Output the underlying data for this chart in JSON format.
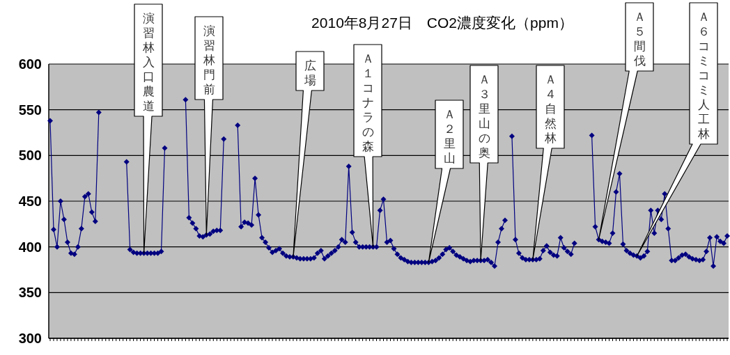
{
  "chart_data": {
    "type": "line",
    "title": "2010年8月27日　CO2濃度変化（ppm）",
    "categories": [
      null,
      null,
      null,
      null,
      null,
      null,
      null,
      null,
      null,
      null,
      null,
      null,
      null,
      null,
      null,
      null,
      null,
      null,
      null,
      null,
      null,
      null,
      null,
      null,
      null,
      null,
      null,
      null,
      null,
      null,
      null,
      null,
      null,
      null,
      null,
      null,
      null,
      null,
      null,
      null,
      null,
      null,
      null,
      null,
      null,
      null,
      null,
      null,
      null,
      null,
      null,
      null,
      null,
      null,
      null,
      null,
      null,
      null,
      null,
      null,
      null,
      null,
      null,
      null,
      null,
      null,
      null,
      null,
      null,
      null,
      null,
      null,
      null,
      null,
      null,
      null,
      null,
      null,
      null,
      null,
      null,
      null,
      null,
      null,
      null,
      null,
      null,
      null,
      null,
      null,
      null,
      null,
      null,
      null,
      null,
      null,
      null,
      null,
      null,
      null,
      null,
      null,
      null,
      null,
      null,
      null,
      null,
      null,
      null,
      null,
      null,
      null,
      null,
      null,
      null,
      null,
      null,
      null,
      null,
      null,
      null,
      null,
      null,
      null,
      null,
      null,
      null,
      null,
      null,
      null,
      null,
      null,
      null,
      null,
      null,
      null,
      null,
      null,
      null,
      null,
      null,
      null,
      null,
      null,
      null,
      null,
      null,
      null,
      null,
      null,
      null,
      null,
      null,
      null,
      null,
      null,
      null,
      null,
      null,
      null,
      null,
      null,
      null,
      null,
      null,
      null,
      null,
      null,
      null,
      null,
      null,
      null,
      null,
      null,
      null,
      null,
      null,
      null,
      null,
      null,
      null,
      null,
      null,
      null,
      null,
      null,
      null,
      null,
      null,
      null,
      null,
      null,
      null,
      null,
      null,
      null
    ],
    "values": [
      538,
      419,
      400,
      450,
      430,
      405,
      393,
      392,
      400,
      420,
      455,
      458,
      438,
      428,
      547,
      null,
      null,
      null,
      null,
      null,
      null,
      null,
      493,
      397,
      394,
      393,
      393,
      393,
      393,
      393,
      393,
      393,
      395,
      508,
      null,
      null,
      null,
      null,
      null,
      561,
      432,
      426,
      420,
      412,
      411,
      413,
      414,
      417,
      418,
      418,
      518,
      null,
      null,
      null,
      533,
      422,
      427,
      426,
      424,
      475,
      435,
      410,
      405,
      399,
      394,
      396,
      398,
      393,
      390,
      389,
      389,
      388,
      387,
      387,
      387,
      387,
      388,
      393,
      396,
      387,
      390,
      393,
      396,
      400,
      408,
      405,
      488,
      416,
      405,
      400,
      400,
      400,
      400,
      400,
      400,
      440,
      452,
      405,
      407,
      398,
      392,
      388,
      386,
      384,
      383,
      383,
      383,
      383,
      383,
      383,
      384,
      385,
      388,
      392,
      397,
      399,
      395,
      391,
      389,
      387,
      385,
      384,
      385,
      385,
      385,
      385,
      386,
      383,
      379,
      405,
      420,
      429,
      null,
      521,
      408,
      393,
      388,
      386,
      386,
      386,
      386,
      387,
      396,
      401,
      394,
      391,
      390,
      410,
      399,
      395,
      392,
      404,
      null,
      null,
      null,
      null,
      522,
      422,
      408,
      406,
      405,
      404,
      415,
      460,
      480,
      403,
      396,
      393,
      391,
      390,
      388,
      390,
      395,
      440,
      415,
      440,
      430,
      458,
      420,
      385,
      385,
      388,
      391,
      392,
      389,
      387,
      386,
      385,
      386,
      395,
      410,
      379,
      411,
      406,
      404,
      412
    ],
    "color": "#000080",
    "marker": "diamond",
    "line_style": "solid",
    "grid": "y",
    "ylim": [
      300,
      600
    ],
    "yticks": [
      300,
      350,
      400,
      450,
      500,
      550,
      600
    ],
    "annotations": [
      "演習林入口農道",
      "演習林門前",
      "広場",
      "Ａ１コナラの森",
      "Ａ２里山",
      "Ａ３里山の奥",
      "Ａ４自然林",
      "Ａ５間伐",
      "Ａ６コミコミ人工林"
    ]
  }
}
